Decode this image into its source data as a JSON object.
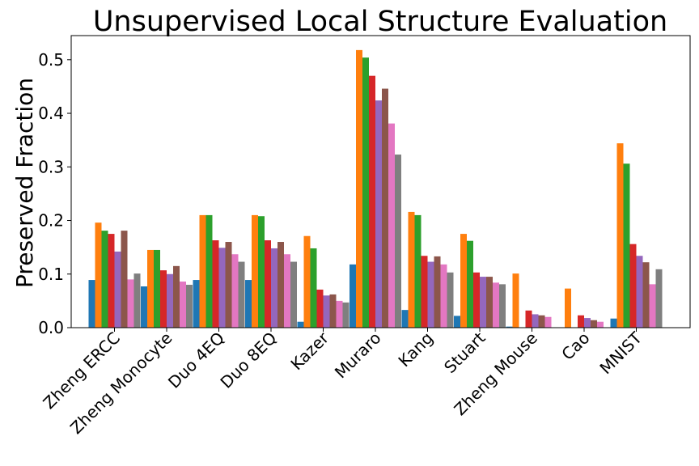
{
  "chart_data": {
    "type": "bar",
    "title": "Unsupervised Local Structure Evaluation",
    "xlabel": "",
    "ylabel": "Preserved Fraction",
    "ylim": [
      0,
      0.545
    ],
    "yticks": [
      0.0,
      0.1,
      0.2,
      0.3,
      0.4,
      0.5
    ],
    "ytick_labels": [
      "0.0",
      "0.1",
      "0.2",
      "0.3",
      "0.4",
      "0.5"
    ],
    "grid": false,
    "legend": "none",
    "categories": [
      "Zheng ERCC",
      "Zheng Monocyte",
      "Duo 4EQ",
      "Duo 8EQ",
      "Kazer",
      "Muraro",
      "Kang",
      "Stuart",
      "Zheng Mouse",
      "Cao",
      "MNIST"
    ],
    "series": [
      {
        "color": "#1f77b4",
        "values": [
          0.089,
          0.077,
          0.089,
          0.089,
          0.011,
          0.118,
          0.033,
          0.022,
          0.002,
          0.0,
          0.017
        ]
      },
      {
        "color": "#ff7f0e",
        "values": [
          0.196,
          0.145,
          0.21,
          0.21,
          0.171,
          0.518,
          0.216,
          0.175,
          0.101,
          0.073,
          0.344
        ]
      },
      {
        "color": "#2ca02c",
        "values": [
          0.181,
          0.145,
          0.21,
          0.208,
          0.148,
          0.504,
          0.21,
          0.162,
          0.0,
          0.0,
          0.306
        ]
      },
      {
        "color": "#d62728",
        "values": [
          0.175,
          0.107,
          0.163,
          0.163,
          0.071,
          0.47,
          0.134,
          0.103,
          0.032,
          0.023,
          0.156
        ]
      },
      {
        "color": "#9467bd",
        "values": [
          0.142,
          0.1,
          0.149,
          0.148,
          0.06,
          0.424,
          0.123,
          0.095,
          0.025,
          0.018,
          0.134
        ]
      },
      {
        "color": "#8c564b",
        "values": [
          0.181,
          0.115,
          0.16,
          0.16,
          0.062,
          0.446,
          0.133,
          0.095,
          0.023,
          0.014,
          0.122
        ]
      },
      {
        "color": "#e377c2",
        "values": [
          0.09,
          0.086,
          0.137,
          0.137,
          0.05,
          0.381,
          0.118,
          0.084,
          0.02,
          0.011,
          0.081
        ]
      },
      {
        "color": "#7f7f7f",
        "values": [
          0.101,
          0.08,
          0.123,
          0.123,
          0.047,
          0.323,
          0.103,
          0.081,
          0.0,
          0.0,
          0.109
        ]
      }
    ]
  }
}
